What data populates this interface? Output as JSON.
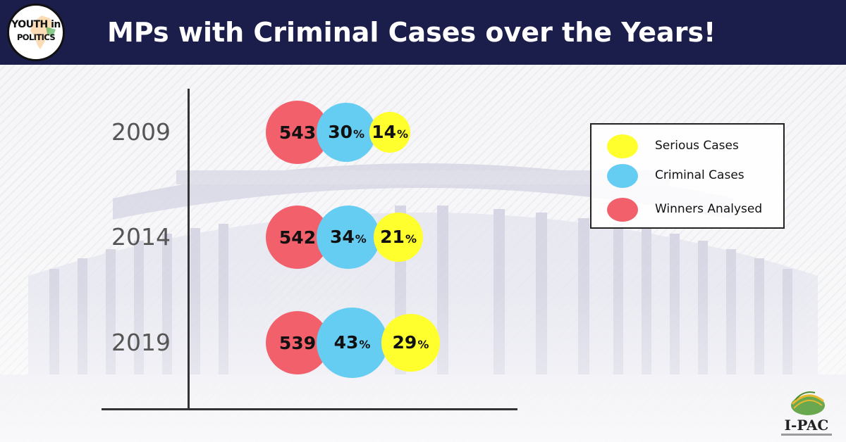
{
  "header": {
    "title": "MPs with Criminal Cases over the Years!",
    "logo_line1": "YOUTH in",
    "logo_line2": "POLITICS"
  },
  "legend": {
    "items": [
      {
        "label": "Serious Cases",
        "color": "#ffff2e"
      },
      {
        "label": "Criminal Cases",
        "color": "#66cdf2"
      },
      {
        "label": "Winners Analysed",
        "color": "#f2606c"
      }
    ]
  },
  "colors": {
    "header_bg": "#1b1d4a",
    "winners": "#f2606c",
    "criminal": "#66cdf2",
    "serious": "#ffff2e"
  },
  "chart_data": {
    "type": "bubble",
    "title": "MPs with Criminal Cases over the Years!",
    "categories": [
      "2009",
      "2014",
      "2019"
    ],
    "series": [
      {
        "name": "Winners Analysed",
        "values": [
          543,
          542,
          539
        ],
        "display": [
          "543",
          "542",
          "539"
        ],
        "unit": "",
        "color": "#f2606c"
      },
      {
        "name": "Criminal Cases",
        "values": [
          30,
          34,
          43
        ],
        "display": [
          "30",
          "34",
          "43"
        ],
        "unit": "%",
        "color": "#66cdf2"
      },
      {
        "name": "Serious Cases",
        "values": [
          14,
          21,
          29
        ],
        "display": [
          "14",
          "21",
          "29"
        ],
        "unit": "%",
        "color": "#ffff2e"
      }
    ],
    "legend_position": "top-right"
  },
  "brand": {
    "ipac": "I-PAC"
  }
}
